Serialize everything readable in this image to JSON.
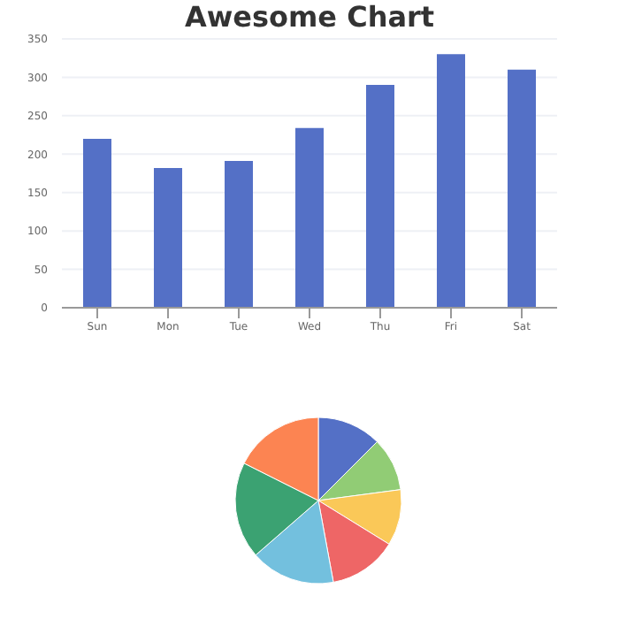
{
  "chart_data": [
    {
      "type": "bar",
      "title": "Awesome Chart",
      "categories": [
        "Sun",
        "Mon",
        "Tue",
        "Wed",
        "Thu",
        "Fri",
        "Sat"
      ],
      "values": [
        220,
        182,
        191,
        234,
        290,
        330,
        310
      ],
      "color": "#5470c6",
      "ylim": [
        0,
        350
      ],
      "yticks": [
        0,
        50,
        100,
        150,
        200,
        250,
        300,
        350
      ],
      "grid": "y"
    },
    {
      "type": "pie",
      "categories": [
        null,
        null,
        null,
        null,
        null,
        null,
        null
      ],
      "values": [
        12.5,
        10.4,
        10.9,
        13.3,
        16.5,
        18.8,
        17.6
      ],
      "colors": [
        "#5470c6",
        "#91cc75",
        "#fac858",
        "#ee6666",
        "#73c0de",
        "#3ba272",
        "#fc8452"
      ]
    }
  ]
}
